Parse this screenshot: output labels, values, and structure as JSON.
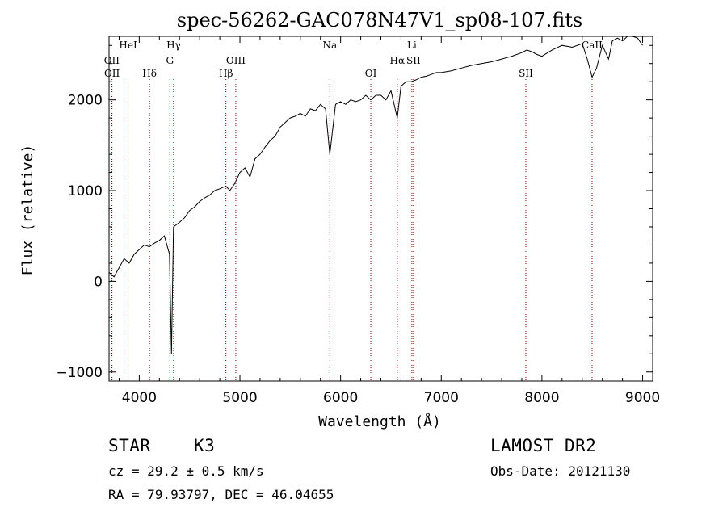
{
  "chart_data": {
    "type": "line",
    "title": "spec-56262-GAC078N47V1_sp08-107.fits",
    "xlabel": "Wavelength (Å)",
    "ylabel": "Flux (relative)",
    "xlim": [
      3700,
      9100
    ],
    "ylim": [
      -1100,
      2700
    ],
    "x_ticks": [
      4000,
      5000,
      6000,
      7000,
      8000,
      9000
    ],
    "y_ticks": [
      -1000,
      0,
      1000,
      2000
    ],
    "grid": false,
    "legend": "none",
    "line_color": "#000000",
    "marker_color": "#8b0000",
    "series": [
      {
        "x": [
          3700,
          3750,
          3800,
          3850,
          3900,
          3950,
          4000,
          4050,
          4100,
          4150,
          4200,
          4250,
          4300,
          4320,
          4340,
          4400,
          4450,
          4500,
          4550,
          4600,
          4650,
          4700,
          4750,
          4800,
          4860,
          4900,
          4950,
          5000,
          5050,
          5100,
          5150,
          5200,
          5250,
          5300,
          5350,
          5400,
          5450,
          5500,
          5550,
          5600,
          5650,
          5700,
          5750,
          5800,
          5850,
          5893,
          5950,
          6000,
          6050,
          6100,
          6150,
          6200,
          6250,
          6300,
          6350,
          6400,
          6450,
          6500,
          6563,
          6600,
          6650,
          6700,
          6750,
          6800,
          6850,
          6900,
          6950,
          7000,
          7100,
          7200,
          7300,
          7400,
          7500,
          7600,
          7700,
          7800,
          7850,
          7900,
          7950,
          8000,
          8100,
          8200,
          8300,
          8400,
          8450,
          8498,
          8542,
          8600,
          8662,
          8700,
          8750,
          8800,
          8850,
          8900,
          8950,
          9000
        ],
        "y": [
          100,
          50,
          150,
          250,
          200,
          300,
          350,
          400,
          380,
          420,
          450,
          500,
          300,
          -800,
          600,
          650,
          700,
          780,
          820,
          880,
          920,
          950,
          1000,
          1020,
          1050,
          1000,
          1080,
          1200,
          1250,
          1150,
          1350,
          1400,
          1480,
          1550,
          1600,
          1700,
          1750,
          1800,
          1820,
          1850,
          1820,
          1900,
          1880,
          1950,
          1900,
          1400,
          1950,
          1980,
          1950,
          2000,
          1980,
          2000,
          2050,
          2000,
          2050,
          2050,
          2000,
          2100,
          1800,
          2150,
          2200,
          2200,
          2220,
          2250,
          2260,
          2280,
          2300,
          2300,
          2320,
          2350,
          2380,
          2400,
          2420,
          2450,
          2480,
          2520,
          2550,
          2530,
          2500,
          2480,
          2550,
          2600,
          2580,
          2620,
          2450,
          2250,
          2350,
          2600,
          2450,
          2650,
          2680,
          2650,
          2700,
          2700,
          2680,
          2600
        ]
      }
    ],
    "lines": [
      {
        "label": "OII",
        "x": 3727,
        "row": 2
      },
      {
        "label": "OII",
        "x": 3729,
        "row": 3
      },
      {
        "label": "HeI",
        "x": 3889,
        "row": 0
      },
      {
        "label": "Hδ",
        "x": 4102,
        "row": 3
      },
      {
        "label": "Hγ",
        "x": 4341,
        "row": 0
      },
      {
        "label": "G",
        "x": 4304,
        "row": 2
      },
      {
        "label": "Hβ",
        "x": 4861,
        "row": 3
      },
      {
        "label": "OIII",
        "x": 4959,
        "row": 2
      },
      {
        "label": "Na",
        "x": 5893,
        "row": 0
      },
      {
        "label": "OI",
        "x": 6300,
        "row": 3
      },
      {
        "label": "Hα",
        "x": 6563,
        "row": 2
      },
      {
        "label": "Li",
        "x": 6708,
        "row": 0
      },
      {
        "label": "SII",
        "x": 6724,
        "row": 2
      },
      {
        "label": "SII",
        "x": 7840,
        "row": 3
      },
      {
        "label": "CaII",
        "x": 8498,
        "row": 0
      }
    ]
  },
  "info": {
    "class": "STAR",
    "subclass": "K3",
    "survey": "LAMOST DR2",
    "cz": "cz = 29.2 ± 0.5 km/s",
    "obs_date": "Obs-Date: 20121130",
    "radec": "RA =  79.93797, DEC =  46.04655"
  }
}
